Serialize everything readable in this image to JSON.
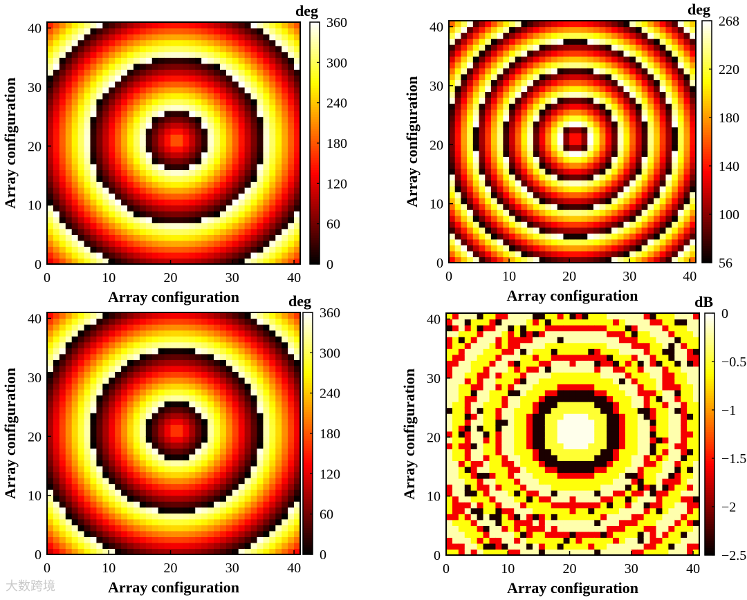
{
  "chart_data": [
    {
      "type": "heatmap",
      "pattern": "phase",
      "colormap": "hot",
      "grid_n": 41,
      "center": [
        21,
        21
      ],
      "ring_period_cells": 9,
      "center_value": 205,
      "xlabel": "Array configuration",
      "ylabel": "Array configuration",
      "xticks": [
        0,
        10,
        20,
        30,
        40
      ],
      "yticks": [
        0,
        10,
        20,
        30,
        40
      ],
      "xlim": [
        0,
        41
      ],
      "ylim": [
        0,
        41
      ],
      "colorbar": {
        "unit": "deg",
        "min": 0,
        "max": 360,
        "ticks": [
          "0",
          "60",
          "120",
          "180",
          "240",
          "300",
          "360"
        ]
      }
    },
    {
      "type": "heatmap",
      "pattern": "phase",
      "colormap": "hot",
      "grid_n": 41,
      "center": [
        21,
        21
      ],
      "ring_period_cells": 8,
      "center_value": 170,
      "xlabel": "Array configuration",
      "ylabel": "Array configuration",
      "xticks": [
        0,
        10,
        20,
        30,
        40
      ],
      "yticks": [
        0,
        10,
        20,
        30,
        40
      ],
      "xlim": [
        0,
        41
      ],
      "ylim": [
        0,
        41
      ],
      "colorbar": {
        "unit": "deg",
        "min": 56,
        "max": 268,
        "ticks": [
          "56",
          "100",
          "140",
          "180",
          "220",
          "268"
        ]
      }
    },
    {
      "type": "heatmap",
      "pattern": "phase",
      "colormap": "hot",
      "grid_n": 41,
      "center": [
        21,
        21
      ],
      "ring_period_cells": 9,
      "center_value": 190,
      "xlabel": "Array configuration",
      "ylabel": "Array configuration",
      "xticks": [
        0,
        10,
        20,
        30,
        40
      ],
      "yticks": [
        0,
        10,
        20,
        30,
        40
      ],
      "xlim": [
        0,
        41
      ],
      "ylim": [
        0,
        41
      ],
      "colorbar": {
        "unit": "deg",
        "min": 0,
        "max": 360,
        "ticks": [
          "0",
          "60",
          "120",
          "180",
          "240",
          "300",
          "360"
        ]
      }
    },
    {
      "type": "heatmap",
      "pattern": "amplitude",
      "colormap": "hot",
      "grid_n": 41,
      "center": [
        21,
        21
      ],
      "ring_period_cells": 5,
      "xlabel": "Array configuration",
      "ylabel": "Array configuration",
      "xticks": [
        0,
        10,
        20,
        30,
        40
      ],
      "yticks": [
        0,
        10,
        20,
        30,
        40
      ],
      "xlim": [
        0,
        41
      ],
      "ylim": [
        0,
        41
      ],
      "colorbar": {
        "unit": "dB",
        "min": -2.5,
        "max": 0,
        "ticks": [
          "−2.5",
          "−2",
          "−1.5",
          "−1",
          "−0.5",
          "0"
        ]
      }
    }
  ],
  "watermark": "大数跨境"
}
